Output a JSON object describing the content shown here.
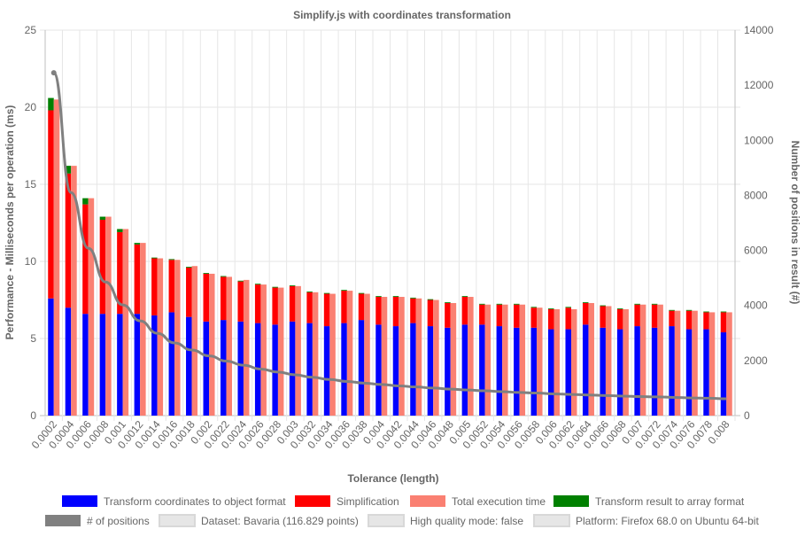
{
  "chart_data": {
    "type": "bar",
    "title": "Simplify.js with coordinates transformation",
    "xlabel": "Tolerance (length)",
    "ylabel": "Performance - Milliseconds per operation (ms)",
    "y2label": "Number of positions in result (#)",
    "ylim": [
      0,
      25
    ],
    "y2lim": [
      0,
      14000
    ],
    "grid": true,
    "legend_position": "bottom",
    "categories": [
      "0.0002",
      "0.0004",
      "0.0006",
      "0.0008",
      "0.001",
      "0.0012",
      "0.0014",
      "0.0016",
      "0.0018",
      "0.002",
      "0.0022",
      "0.0024",
      "0.0026",
      "0.0028",
      "0.003",
      "0.0032",
      "0.0034",
      "0.0036",
      "0.0038",
      "0.004",
      "0.0042",
      "0.0044",
      "0.0046",
      "0.0048",
      "0.005",
      "0.0052",
      "0.0054",
      "0.0056",
      "0.0058",
      "0.006",
      "0.0062",
      "0.0064",
      "0.0066",
      "0.0068",
      "0.007",
      "0.0072",
      "0.0074",
      "0.0076",
      "0.0078",
      "0.008"
    ],
    "series": [
      {
        "name": "Transform coordinates to object format",
        "color": "#0000ff",
        "stack": "components",
        "axis": "left",
        "values": [
          7.6,
          7.0,
          6.6,
          6.6,
          6.6,
          6.6,
          6.5,
          6.7,
          6.4,
          6.1,
          6.2,
          6.1,
          6.0,
          5.9,
          6.1,
          6.0,
          5.8,
          6.0,
          6.2,
          5.9,
          5.8,
          6.0,
          5.8,
          5.7,
          5.9,
          5.9,
          5.8,
          5.7,
          5.7,
          5.6,
          5.6,
          5.9,
          5.7,
          5.6,
          5.8,
          5.7,
          5.8,
          5.6,
          5.6,
          5.4
        ]
      },
      {
        "name": "Simplification",
        "color": "#ff0000",
        "stack": "components",
        "axis": "left",
        "values": [
          12.2,
          8.7,
          7.1,
          6.1,
          5.3,
          4.5,
          3.7,
          3.4,
          3.2,
          3.1,
          2.8,
          2.6,
          2.5,
          2.4,
          2.3,
          2.0,
          2.1,
          2.1,
          1.7,
          1.8,
          1.9,
          1.6,
          1.7,
          1.6,
          1.8,
          1.3,
          1.4,
          1.5,
          1.3,
          1.3,
          1.4,
          1.4,
          1.4,
          1.3,
          1.4,
          1.5,
          1.0,
          1.2,
          1.1,
          1.3
        ]
      },
      {
        "name": "Total execution time",
        "color": "#fa8072",
        "stack": "total",
        "axis": "left",
        "values": [
          20.5,
          16.2,
          14.1,
          12.9,
          12.1,
          11.2,
          10.2,
          10.1,
          9.7,
          9.2,
          9.0,
          8.8,
          8.5,
          8.3,
          8.4,
          8.0,
          7.9,
          8.1,
          7.9,
          7.7,
          7.7,
          7.6,
          7.5,
          7.3,
          7.7,
          7.2,
          7.2,
          7.2,
          7.0,
          6.9,
          6.9,
          7.3,
          7.1,
          6.9,
          7.2,
          7.2,
          6.8,
          6.8,
          6.7,
          6.7
        ]
      },
      {
        "name": "Transform result to array format",
        "color": "#008000",
        "stack": "components",
        "axis": "left",
        "values": [
          0.8,
          0.5,
          0.4,
          0.2,
          0.2,
          0.1,
          0.05,
          0.05,
          0.05,
          0.05,
          0.05,
          0.05,
          0.05,
          0.05,
          0.05,
          0.05,
          0.05,
          0.05,
          0.05,
          0.05,
          0.05,
          0.05,
          0.05,
          0.05,
          0.05,
          0.05,
          0.05,
          0.05,
          0.05,
          0.05,
          0.05,
          0.05,
          0.05,
          0.05,
          0.05,
          0.05,
          0.05,
          0.05,
          0.05,
          0.05
        ]
      },
      {
        "name": "# of positions",
        "color": "#808080",
        "type": "line",
        "axis": "right",
        "values": [
          12450,
          8100,
          6080,
          4850,
          4020,
          3440,
          2990,
          2640,
          2380,
          2170,
          1980,
          1830,
          1690,
          1580,
          1480,
          1390,
          1310,
          1240,
          1180,
          1130,
          1080,
          1040,
          1000,
          960,
          930,
          900,
          870,
          840,
          820,
          790,
          770,
          750,
          730,
          710,
          690,
          680,
          660,
          640,
          630,
          610
        ]
      }
    ],
    "info_legend": [
      "Dataset: Bavaria (116.829 points)",
      "High quality mode: false",
      "Platform: Firefox 68.0 on Ubuntu 64-bit"
    ]
  }
}
